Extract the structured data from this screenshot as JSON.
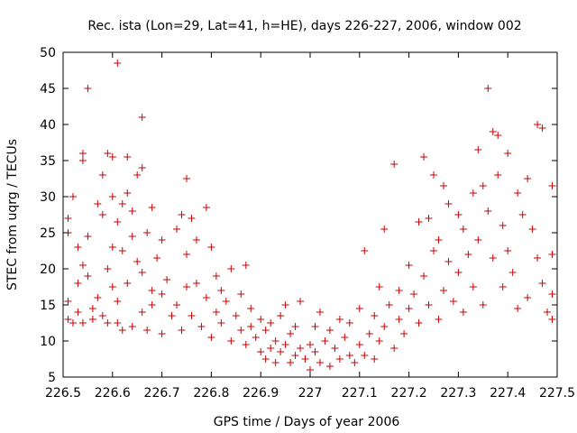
{
  "chart_data": {
    "type": "scatter",
    "title": "Rec. ista (Lon=29, Lat=41, h=HE), days 226-227, 2006, window 002",
    "xlabel": "GPS time / Days of year 2006",
    "ylabel": "STEC from uqrg / TECUs",
    "xlim": [
      226.5,
      227.5
    ],
    "ylim": [
      5,
      50
    ],
    "x_ticks": [
      226.5,
      226.6,
      226.7,
      226.8,
      226.9,
      227.0,
      227.1,
      227.2,
      227.3,
      227.4,
      227.5
    ],
    "x_tick_labels": [
      "226.5",
      "226.6",
      "226.7",
      "226.8",
      "226.9",
      "227",
      "227.1",
      "227.2",
      "227.3",
      "227.4",
      "227.5"
    ],
    "y_ticks": [
      5,
      10,
      15,
      20,
      25,
      30,
      35,
      40,
      45,
      50
    ],
    "y_tick_labels": [
      "5",
      "10",
      "15",
      "20",
      "25",
      "30",
      "35",
      "40",
      "45",
      "50"
    ],
    "grid": false,
    "marker": "+",
    "marker_color": "#cc0000",
    "points": [
      [
        226.51,
        13.0
      ],
      [
        226.51,
        15.5
      ],
      [
        226.51,
        27.0
      ],
      [
        226.51,
        25.0
      ],
      [
        226.52,
        12.5
      ],
      [
        226.52,
        30.0
      ],
      [
        226.53,
        14.0
      ],
      [
        226.53,
        23.0
      ],
      [
        226.53,
        18.0
      ],
      [
        226.54,
        36.0
      ],
      [
        226.54,
        35.0
      ],
      [
        226.54,
        20.5
      ],
      [
        226.54,
        12.5
      ],
      [
        226.55,
        45.0
      ],
      [
        226.55,
        24.5
      ],
      [
        226.55,
        19.0
      ],
      [
        226.56,
        13.0
      ],
      [
        226.56,
        14.5
      ],
      [
        226.57,
        29.0
      ],
      [
        226.57,
        16.0
      ],
      [
        226.58,
        33.0
      ],
      [
        226.58,
        13.5
      ],
      [
        226.58,
        27.5
      ],
      [
        226.59,
        36.0
      ],
      [
        226.59,
        20.0
      ],
      [
        226.59,
        12.5
      ],
      [
        226.6,
        35.5
      ],
      [
        226.6,
        30.0
      ],
      [
        226.6,
        17.5
      ],
      [
        226.6,
        23.0
      ],
      [
        226.61,
        48.5
      ],
      [
        226.61,
        12.5
      ],
      [
        226.61,
        26.5
      ],
      [
        226.61,
        15.5
      ],
      [
        226.62,
        29.0
      ],
      [
        226.62,
        22.5
      ],
      [
        226.62,
        11.5
      ],
      [
        226.63,
        35.5
      ],
      [
        226.63,
        30.5
      ],
      [
        226.63,
        18.0
      ],
      [
        226.64,
        28.0
      ],
      [
        226.64,
        24.5
      ],
      [
        226.64,
        12.0
      ],
      [
        226.65,
        33.0
      ],
      [
        226.65,
        21.0
      ],
      [
        226.66,
        41.0
      ],
      [
        226.66,
        34.0
      ],
      [
        226.66,
        19.5
      ],
      [
        226.66,
        14.0
      ],
      [
        226.67,
        25.0
      ],
      [
        226.67,
        11.5
      ],
      [
        226.68,
        28.5
      ],
      [
        226.68,
        17.0
      ],
      [
        226.68,
        15.0
      ],
      [
        226.69,
        21.5
      ],
      [
        226.7,
        24.0
      ],
      [
        226.7,
        11.0
      ],
      [
        226.7,
        16.5
      ],
      [
        226.71,
        18.5
      ],
      [
        226.72,
        13.5
      ],
      [
        226.73,
        25.5
      ],
      [
        226.73,
        15.0
      ],
      [
        226.74,
        27.5
      ],
      [
        226.74,
        11.5
      ],
      [
        226.75,
        32.5
      ],
      [
        226.75,
        22.0
      ],
      [
        226.75,
        17.5
      ],
      [
        226.76,
        27.0
      ],
      [
        226.76,
        13.5
      ],
      [
        226.77,
        24.0
      ],
      [
        226.77,
        18.0
      ],
      [
        226.78,
        12.0
      ],
      [
        226.79,
        28.5
      ],
      [
        226.79,
        16.0
      ],
      [
        226.8,
        23.0
      ],
      [
        226.8,
        10.5
      ],
      [
        226.81,
        19.0
      ],
      [
        226.81,
        14.0
      ],
      [
        226.82,
        17.0
      ],
      [
        226.82,
        12.5
      ],
      [
        226.83,
        15.5
      ],
      [
        226.84,
        10.0
      ],
      [
        226.84,
        20.0
      ],
      [
        226.85,
        13.5
      ],
      [
        226.86,
        16.5
      ],
      [
        226.86,
        11.5
      ],
      [
        226.87,
        20.5
      ],
      [
        226.87,
        9.5
      ],
      [
        226.88,
        14.5
      ],
      [
        226.88,
        12.0
      ],
      [
        226.89,
        10.5
      ],
      [
        226.9,
        13.0
      ],
      [
        226.9,
        8.5
      ],
      [
        226.91,
        11.5
      ],
      [
        226.91,
        7.5
      ],
      [
        226.92,
        12.5
      ],
      [
        226.92,
        9.0
      ],
      [
        226.93,
        10.0
      ],
      [
        226.93,
        7.0
      ],
      [
        226.94,
        13.5
      ],
      [
        226.94,
        8.5
      ],
      [
        226.95,
        15.0
      ],
      [
        226.95,
        9.5
      ],
      [
        226.96,
        7.0
      ],
      [
        226.96,
        11.0
      ],
      [
        226.97,
        8.0
      ],
      [
        226.97,
        12.0
      ],
      [
        226.98,
        15.5
      ],
      [
        226.98,
        9.0
      ],
      [
        226.99,
        7.5
      ],
      [
        227.0,
        9.5
      ],
      [
        227.0,
        6.0
      ],
      [
        227.01,
        12.0
      ],
      [
        227.01,
        8.5
      ],
      [
        227.02,
        14.0
      ],
      [
        227.02,
        7.0
      ],
      [
        227.03,
        10.0
      ],
      [
        227.04,
        6.5
      ],
      [
        227.04,
        11.5
      ],
      [
        227.05,
        9.0
      ],
      [
        227.06,
        13.0
      ],
      [
        227.06,
        7.5
      ],
      [
        227.07,
        10.5
      ],
      [
        227.08,
        8.0
      ],
      [
        227.08,
        12.5
      ],
      [
        227.09,
        7.0
      ],
      [
        227.1,
        14.5
      ],
      [
        227.1,
        9.5
      ],
      [
        227.11,
        22.5
      ],
      [
        227.11,
        8.0
      ],
      [
        227.12,
        11.0
      ],
      [
        227.13,
        13.5
      ],
      [
        227.13,
        7.5
      ],
      [
        227.14,
        17.5
      ],
      [
        227.14,
        10.0
      ],
      [
        227.15,
        25.5
      ],
      [
        227.15,
        12.0
      ],
      [
        227.16,
        15.0
      ],
      [
        227.17,
        34.5
      ],
      [
        227.17,
        9.0
      ],
      [
        227.18,
        17.0
      ],
      [
        227.18,
        13.0
      ],
      [
        227.19,
        11.0
      ],
      [
        227.2,
        20.5
      ],
      [
        227.2,
        14.5
      ],
      [
        227.21,
        16.5
      ],
      [
        227.22,
        26.5
      ],
      [
        227.22,
        12.5
      ],
      [
        227.23,
        35.5
      ],
      [
        227.23,
        19.0
      ],
      [
        227.24,
        27.0
      ],
      [
        227.24,
        15.0
      ],
      [
        227.25,
        33.0
      ],
      [
        227.25,
        22.5
      ],
      [
        227.26,
        24.0
      ],
      [
        227.26,
        13.0
      ],
      [
        227.27,
        31.5
      ],
      [
        227.27,
        17.0
      ],
      [
        227.28,
        29.0
      ],
      [
        227.28,
        21.0
      ],
      [
        227.29,
        15.5
      ],
      [
        227.3,
        27.5
      ],
      [
        227.3,
        19.5
      ],
      [
        227.31,
        25.5
      ],
      [
        227.31,
        14.0
      ],
      [
        227.32,
        22.0
      ],
      [
        227.33,
        30.5
      ],
      [
        227.33,
        17.5
      ],
      [
        227.34,
        36.5
      ],
      [
        227.34,
        24.0
      ],
      [
        227.35,
        31.5
      ],
      [
        227.35,
        15.0
      ],
      [
        227.36,
        45.0
      ],
      [
        227.36,
        28.0
      ],
      [
        227.37,
        39.0
      ],
      [
        227.37,
        21.5
      ],
      [
        227.38,
        38.5
      ],
      [
        227.38,
        33.0
      ],
      [
        227.39,
        26.0
      ],
      [
        227.39,
        17.5
      ],
      [
        227.4,
        36.0
      ],
      [
        227.4,
        22.5
      ],
      [
        227.41,
        19.5
      ],
      [
        227.42,
        30.5
      ],
      [
        227.42,
        14.5
      ],
      [
        227.43,
        27.5
      ],
      [
        227.44,
        32.5
      ],
      [
        227.44,
        16.0
      ],
      [
        227.45,
        25.5
      ],
      [
        227.46,
        40.0
      ],
      [
        227.46,
        21.5
      ],
      [
        227.47,
        39.5
      ],
      [
        227.47,
        18.0
      ],
      [
        227.48,
        14.0
      ],
      [
        227.49,
        31.5
      ],
      [
        227.49,
        22.0
      ],
      [
        227.49,
        13.0
      ],
      [
        227.49,
        16.5
      ]
    ]
  }
}
